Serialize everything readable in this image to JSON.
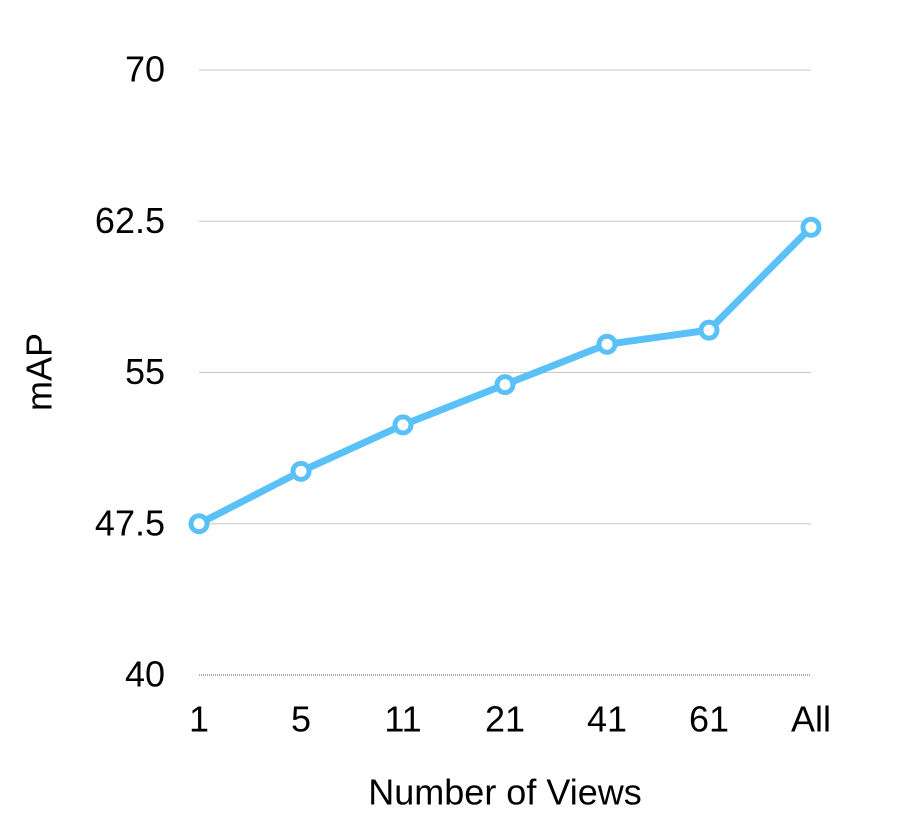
{
  "chart_data": {
    "type": "line",
    "x_label": "Number of Views",
    "y_label": "mAP",
    "categories": [
      "1",
      "5",
      "11",
      "21",
      "41",
      "61",
      "All"
    ],
    "series": [
      {
        "color": "#5ac1f8",
        "values": [
          47.5,
          50.1,
          52.4,
          54.4,
          56.4,
          57.1,
          62.2
        ]
      }
    ],
    "ylim": [
      40,
      70
    ],
    "yticks": [
      40,
      47.5,
      55,
      62.5,
      70
    ],
    "grid": true
  }
}
